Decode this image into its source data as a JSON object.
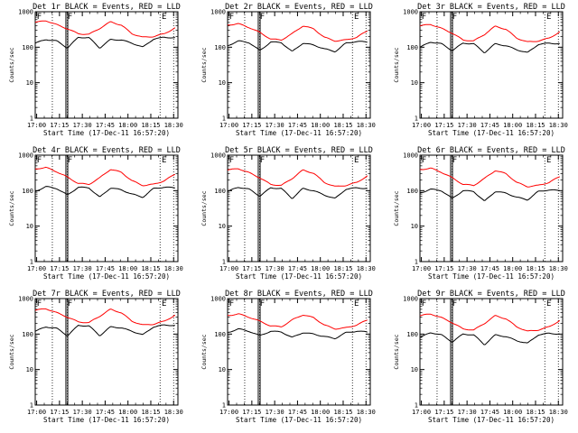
{
  "figure": {
    "start_time_label": "Start Time (17-Dec-11 16:57:20)"
  },
  "chart_data": [
    {
      "type": "line",
      "title": "Det 1r BLACK = Events, RED = LLD",
      "xlabel": "Start Time (17-Dec-11 16:57:20)",
      "ylabel": "Counts/sec",
      "yscale": "log",
      "ylim": [
        1,
        1000
      ],
      "x_ticks": [
        "17:00",
        "17:15",
        "17:30",
        "17:45",
        "18:00",
        "18:15",
        "18:30"
      ],
      "y_ticks": [
        "1",
        "10",
        "100",
        "1000"
      ],
      "markers": [
        "F",
        "F",
        "E"
      ],
      "series": [
        {
          "name": "Events",
          "color": "#000000",
          "values": [
            130,
            165,
            150,
            95,
            190,
            185,
            95,
            165,
            160,
            130,
            100,
            170,
            190,
            185
          ]
        },
        {
          "name": "LLD",
          "color": "#ff0000",
          "values": [
            500,
            560,
            430,
            330,
            240,
            230,
            340,
            520,
            420,
            240,
            190,
            200,
            240,
            350
          ]
        }
      ]
    },
    {
      "type": "line",
      "title": "Det 2r BLACK = Events, RED = LLD",
      "xlabel": "Start Time (17-Dec-11 16:57:20)",
      "ylabel": "Counts/sec",
      "yscale": "log",
      "ylim": [
        1,
        1000
      ],
      "x_ticks": [
        "17:00",
        "17:15",
        "17:30",
        "17:45",
        "18:00",
        "18:15",
        "18:30"
      ],
      "y_ticks": [
        "1",
        "10",
        "100",
        "1000"
      ],
      "markers": [
        "F",
        "F",
        "E"
      ],
      "series": [
        {
          "name": "Events",
          "color": "#000000",
          "values": [
            110,
            150,
            135,
            80,
            140,
            135,
            75,
            130,
            115,
            90,
            75,
            130,
            145,
            140
          ]
        },
        {
          "name": "LLD",
          "color": "#ff0000",
          "values": [
            420,
            460,
            360,
            260,
            170,
            160,
            240,
            400,
            330,
            190,
            150,
            160,
            190,
            290
          ]
        }
      ]
    },
    {
      "type": "line",
      "title": "Det 3r BLACK = Events, RED = LLD",
      "xlabel": "Start Time (17-Dec-11 16:57:20)",
      "ylabel": "Counts/sec",
      "yscale": "log",
      "ylim": [
        1,
        1000
      ],
      "x_ticks": [
        "17:00",
        "17:15",
        "17:30",
        "17:45",
        "18:00",
        "18:15",
        "18:30"
      ],
      "y_ticks": [
        "1",
        "10",
        "100",
        "1000"
      ],
      "markers": [
        "F",
        "F",
        "E"
      ],
      "series": [
        {
          "name": "Events",
          "color": "#000000",
          "values": [
            100,
            140,
            125,
            80,
            130,
            125,
            70,
            125,
            110,
            85,
            70,
            120,
            130,
            125
          ]
        },
        {
          "name": "LLD",
          "color": "#ff0000",
          "values": [
            400,
            440,
            340,
            250,
            160,
            150,
            230,
            390,
            320,
            180,
            140,
            150,
            180,
            270
          ]
        }
      ]
    },
    {
      "type": "line",
      "title": "Det 4r BLACK = Events, RED = LLD",
      "xlabel": "Start Time (17-Dec-11 16:57:20)",
      "ylabel": "Counts/sec",
      "yscale": "log",
      "ylim": [
        1,
        1000
      ],
      "x_ticks": [
        "17:00",
        "17:15",
        "17:30",
        "17:45",
        "18:00",
        "18:15",
        "18:30"
      ],
      "y_ticks": [
        "1",
        "10",
        "100",
        "1000"
      ],
      "markers": [
        "F",
        "F",
        "E"
      ],
      "series": [
        {
          "name": "Events",
          "color": "#000000",
          "values": [
            95,
            130,
            115,
            75,
            125,
            120,
            65,
            120,
            105,
            80,
            65,
            115,
            125,
            120
          ]
        },
        {
          "name": "LLD",
          "color": "#ff0000",
          "values": [
            410,
            450,
            340,
            240,
            160,
            150,
            230,
            400,
            330,
            190,
            140,
            150,
            190,
            290
          ]
        }
      ]
    },
    {
      "type": "line",
      "title": "Det 5r BLACK = Events, RED = LLD",
      "xlabel": "Start Time (17-Dec-11 16:57:20)",
      "ylabel": "Counts/sec",
      "yscale": "log",
      "ylim": [
        1,
        1000
      ],
      "x_ticks": [
        "17:00",
        "17:15",
        "17:30",
        "17:45",
        "18:00",
        "18:15",
        "18:30"
      ],
      "y_ticks": [
        "1",
        "10",
        "100",
        "1000"
      ],
      "markers": [
        "F",
        "F",
        "E"
      ],
      "series": [
        {
          "name": "Events",
          "color": "#000000",
          "values": [
            95,
            125,
            110,
            70,
            120,
            115,
            60,
            115,
            100,
            75,
            60,
            110,
            120,
            115
          ]
        },
        {
          "name": "LLD",
          "color": "#ff0000",
          "values": [
            380,
            420,
            320,
            230,
            150,
            140,
            220,
            380,
            310,
            170,
            130,
            140,
            170,
            260
          ]
        }
      ]
    },
    {
      "type": "line",
      "title": "Det 6r BLACK = Events, RED = LLD",
      "xlabel": "Start Time (17-Dec-11 16:57:20)",
      "ylabel": "Counts/sec",
      "yscale": "log",
      "ylim": [
        1,
        1000
      ],
      "x_ticks": [
        "17:00",
        "17:15",
        "17:30",
        "17:45",
        "18:00",
        "18:15",
        "18:30"
      ],
      "y_ticks": [
        "1",
        "10",
        "100",
        "1000"
      ],
      "markers": [
        "F",
        "F",
        "E"
      ],
      "series": [
        {
          "name": "Events",
          "color": "#000000",
          "values": [
            85,
            110,
            100,
            60,
            100,
            95,
            50,
            95,
            85,
            65,
            55,
            95,
            105,
            100
          ]
        },
        {
          "name": "LLD",
          "color": "#ff0000",
          "values": [
            390,
            430,
            330,
            230,
            150,
            140,
            220,
            370,
            300,
            170,
            130,
            140,
            170,
            250
          ]
        }
      ]
    },
    {
      "type": "line",
      "title": "Det 7r BLACK = Events, RED = LLD",
      "xlabel": "Start Time (17-Dec-11 16:57:20)",
      "ylabel": "Counts/sec",
      "yscale": "log",
      "ylim": [
        1,
        1000
      ],
      "x_ticks": [
        "17:00",
        "17:15",
        "17:30",
        "17:45",
        "18:00",
        "18:15",
        "18:30"
      ],
      "y_ticks": [
        "1",
        "10",
        "100",
        "1000"
      ],
      "markers": [
        "F",
        "F",
        "E"
      ],
      "series": [
        {
          "name": "Events",
          "color": "#000000",
          "values": [
            120,
            160,
            145,
            90,
            175,
            170,
            90,
            160,
            150,
            120,
            95,
            160,
            180,
            175
          ]
        },
        {
          "name": "LLD",
          "color": "#ff0000",
          "values": [
            470,
            520,
            400,
            300,
            220,
            210,
            320,
            500,
            400,
            230,
            180,
            190,
            230,
            340
          ]
        }
      ]
    },
    {
      "type": "line",
      "title": "Det 8r BLACK = Events, RED = LLD",
      "xlabel": "Start Time (17-Dec-11 16:57:20)",
      "ylabel": "Counts/sec",
      "yscale": "log",
      "ylim": [
        1,
        1000
      ],
      "x_ticks": [
        "17:00",
        "17:15",
        "17:30",
        "17:45",
        "18:00",
        "18:15",
        "18:30"
      ],
      "y_ticks": [
        "1",
        "10",
        "100",
        "1000"
      ],
      "markers": [
        "F",
        "F",
        "E"
      ],
      "series": [
        {
          "name": "Events",
          "color": "#000000",
          "values": [
            110,
            140,
            120,
            90,
            120,
            115,
            80,
            110,
            100,
            85,
            75,
            110,
            120,
            115
          ]
        },
        {
          "name": "LLD",
          "color": "#ff0000",
          "values": [
            330,
            370,
            300,
            230,
            170,
            160,
            250,
            350,
            290,
            180,
            140,
            150,
            180,
            250
          ]
        }
      ]
    },
    {
      "type": "line",
      "title": "Det 9r BLACK = Events, RED = LLD",
      "xlabel": "Start Time (17-Dec-11 16:57:20)",
      "ylabel": "Counts/sec",
      "yscale": "log",
      "ylim": [
        1,
        1000
      ],
      "x_ticks": [
        "17:00",
        "17:15",
        "17:30",
        "17:45",
        "18:00",
        "18:15",
        "18:30"
      ],
      "y_ticks": [
        "1",
        "10",
        "100",
        "1000"
      ],
      "markers": [
        "F",
        "F",
        "E"
      ],
      "series": [
        {
          "name": "Events",
          "color": "#000000",
          "values": [
            80,
            110,
            95,
            60,
            100,
            95,
            50,
            95,
            85,
            65,
            55,
            95,
            105,
            100
          ]
        },
        {
          "name": "LLD",
          "color": "#ff0000",
          "values": [
            330,
            370,
            290,
            210,
            140,
            130,
            200,
            330,
            270,
            160,
            120,
            130,
            160,
            240
          ]
        }
      ]
    }
  ]
}
